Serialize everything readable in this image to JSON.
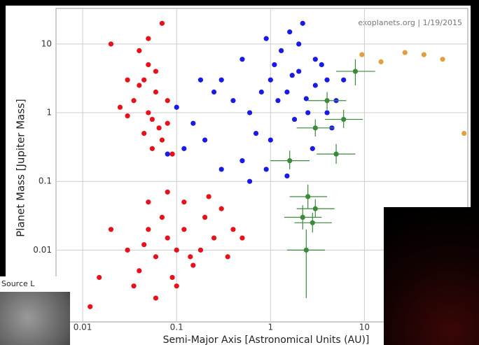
{
  "chart_data": {
    "type": "scatter",
    "annotation": "exoplanets.org | 1/19/2015",
    "y_label": "Planet Mass [Jupiter Mass]",
    "x_label": "Semi-Major Axis [Astronomical Units (AU)]",
    "overlay_label": "Source L",
    "log_x": true,
    "log_y": true,
    "grid": true,
    "xlim": [
      0.0052,
      126
    ],
    "ylim": [
      0.0009,
      33
    ],
    "xticks": [
      0.01,
      0.1,
      1,
      10
    ],
    "yticks": [
      0.01,
      0.1,
      1,
      10
    ],
    "series": [
      {
        "color": "#e8101a",
        "x": [
          0.04,
          0.05,
          0.045,
          0.06,
          0.035,
          0.05,
          0.055,
          0.065,
          0.045,
          0.07,
          0.04,
          0.03,
          0.025,
          0.08,
          0.06,
          0.05,
          0.07,
          0.03,
          0.055,
          0.02,
          0.08,
          0.09,
          0.03,
          0.04,
          0.05,
          0.06,
          0.07,
          0.08,
          0.09,
          0.1,
          0.12,
          0.15,
          0.2,
          0.25,
          0.3,
          0.05,
          0.08,
          0.12,
          0.035,
          0.06,
          0.18,
          0.1,
          0.4,
          0.5,
          0.045,
          0.14,
          0.22,
          0.015,
          0.012,
          0.02,
          0.35
        ],
        "values": [
          8,
          5,
          3,
          2,
          1.5,
          1,
          0.8,
          0.6,
          0.5,
          0.4,
          2.5,
          3,
          1.2,
          1.5,
          4,
          12,
          20,
          0.9,
          0.3,
          10,
          0.7,
          0.25,
          0.01,
          0.005,
          0.02,
          0.008,
          0.03,
          0.015,
          0.004,
          0.01,
          0.02,
          0.006,
          0.03,
          0.015,
          0.04,
          0.05,
          0.07,
          0.05,
          0.003,
          0.002,
          0.01,
          0.003,
          0.02,
          0.015,
          0.012,
          0.008,
          0.06,
          0.004,
          0.0015,
          0.02,
          0.008
        ]
      },
      {
        "color": "#1a1ae8",
        "x": [
          1,
          1.5,
          2,
          1.2,
          3,
          2.5,
          1.8,
          0.8,
          4,
          3.5,
          1.3,
          2,
          1.6,
          2.2,
          5,
          4.5,
          0.7,
          0.6,
          1,
          2.8,
          3,
          1.1,
          0.9,
          0.5,
          0.3,
          0.4,
          0.15,
          0.1,
          0.2,
          0.12,
          0.08,
          0.3,
          0.5,
          0.6,
          0.25,
          0.18,
          0.9,
          1.5,
          4,
          6,
          2.4,
          1.7
        ],
        "values": [
          3,
          2,
          4,
          1.5,
          2.5,
          1,
          0.8,
          2,
          3,
          5,
          8,
          10,
          15,
          20,
          1.5,
          0.6,
          0.5,
          1,
          0.4,
          0.3,
          6,
          5,
          12,
          6,
          3,
          1.5,
          0.7,
          1.2,
          0.4,
          0.3,
          0.25,
          0.15,
          0.2,
          0.1,
          2,
          3,
          0.15,
          0.12,
          1,
          3,
          1.6,
          3.5
        ]
      },
      {
        "color": "#3a8a3a",
        "x": [
          8,
          4,
          6,
          3,
          5,
          1.6,
          2.5,
          3,
          2.8,
          2.2,
          2.4
        ],
        "values": [
          4,
          1.5,
          0.8,
          0.6,
          0.25,
          0.2,
          0.06,
          0.04,
          0.025,
          0.03,
          0.01
        ],
        "x_lo": [
          5,
          2.5,
          3.8,
          1.9,
          3.1,
          1,
          1.6,
          1.9,
          1.8,
          1.4,
          1.5
        ],
        "x_hi": [
          13,
          6.4,
          9.6,
          4.8,
          8,
          2.6,
          4,
          4.8,
          4.5,
          3.5,
          3.8
        ],
        "y_lo": [
          2.5,
          1.1,
          0.6,
          0.45,
          0.18,
          0.15,
          0.04,
          0.03,
          0.018,
          0.02,
          0.002
        ],
        "y_hi": [
          6,
          2,
          1.1,
          0.8,
          0.35,
          0.28,
          0.09,
          0.055,
          0.035,
          0.045,
          0.02
        ]
      },
      {
        "color": "#e0a040",
        "x": [
          9.4,
          15,
          27,
          43,
          68,
          115
        ],
        "values": [
          7,
          5.5,
          7.5,
          7,
          6,
          0.5
        ]
      }
    ]
  }
}
